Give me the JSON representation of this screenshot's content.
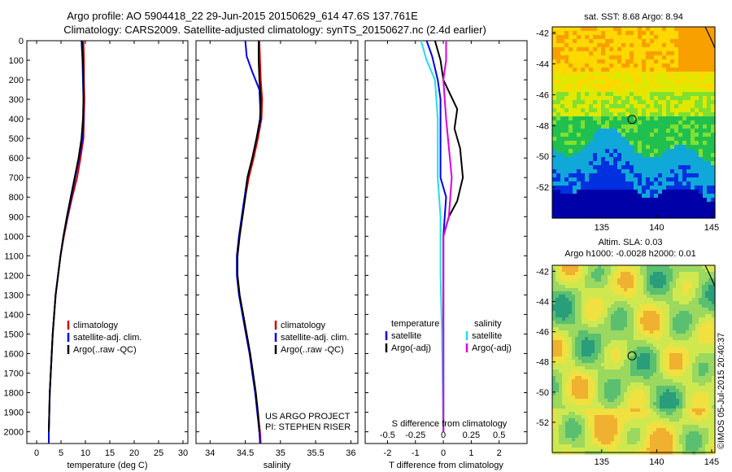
{
  "header": {
    "line1": "Argo profile: AO 5904418_22 29-Jun-2015 20150629_614 47.6S 137.761E",
    "line2": "Climatology: CARS2009. Satellite-adjusted climatology: synTS_20150627.nc (2.4d earlier)"
  },
  "credit": "©IMOS 05-Jul-2015 20:40:37",
  "colors": {
    "red": "#d00000",
    "blue": "#0000ee",
    "black": "#000000",
    "cyan": "#22dde8",
    "magenta": "#dd00dd"
  },
  "chart_data": [
    {
      "type": "line",
      "name": "temperature-profile",
      "xlabel": "temperature (deg C)",
      "xlim": [
        -2,
        31
      ],
      "ylim": [
        0,
        2060
      ],
      "y_reversed": true,
      "xticks": [
        "0",
        "5",
        "10",
        "15",
        "20",
        "25",
        "30"
      ],
      "xtick_values": [
        0,
        5,
        10,
        15,
        20,
        25,
        30
      ],
      "yticks": [
        "0",
        "100",
        "200",
        "300",
        "400",
        "500",
        "600",
        "700",
        "800",
        "900",
        "1000",
        "1100",
        "1200",
        "1300",
        "1400",
        "1500",
        "1600",
        "1700",
        "1800",
        "1900",
        "2000"
      ],
      "ytick_values": [
        0,
        100,
        200,
        300,
        400,
        500,
        600,
        700,
        800,
        900,
        1000,
        1100,
        1200,
        1300,
        1400,
        1500,
        1600,
        1700,
        1800,
        1900,
        2000
      ],
      "legend": [
        "climatology",
        "satellite-adj. clim.",
        "Argo(..raw -QC)"
      ],
      "series": [
        {
          "name": "climatology",
          "color": "red",
          "points": [
            [
              9.6,
              0
            ],
            [
              9.7,
              100
            ],
            [
              9.7,
              200
            ],
            [
              9.8,
              300
            ],
            [
              9.7,
              400
            ],
            [
              9.6,
              500
            ],
            [
              9.0,
              600
            ],
            [
              8.3,
              700
            ],
            [
              7.3,
              800
            ],
            [
              6.4,
              900
            ],
            [
              5.6,
              1000
            ],
            [
              4.9,
              1100
            ],
            [
              4.4,
              1200
            ],
            [
              3.9,
              1300
            ],
            [
              3.6,
              1400
            ],
            [
              3.3,
              1500
            ],
            [
              3.1,
              1600
            ],
            [
              2.9,
              1700
            ],
            [
              2.7,
              1800
            ],
            [
              2.6,
              1900
            ],
            [
              2.5,
              2000
            ],
            [
              2.5,
              2060
            ]
          ]
        },
        {
          "name": "satellite-adj. clim.",
          "color": "blue",
          "points": [
            [
              9.2,
              0
            ],
            [
              9.4,
              100
            ],
            [
              9.5,
              200
            ],
            [
              9.6,
              300
            ],
            [
              9.6,
              400
            ],
            [
              9.4,
              500
            ],
            [
              8.7,
              600
            ],
            [
              7.9,
              700
            ],
            [
              7.1,
              800
            ],
            [
              6.3,
              900
            ],
            [
              5.5,
              1000
            ],
            [
              4.9,
              1100
            ],
            [
              4.4,
              1200
            ],
            [
              3.9,
              1300
            ],
            [
              3.6,
              1400
            ],
            [
              3.3,
              1500
            ],
            [
              3.1,
              1600
            ],
            [
              2.9,
              1700
            ],
            [
              2.7,
              1800
            ],
            [
              2.6,
              1900
            ],
            [
              2.5,
              2000
            ],
            [
              2.5,
              2060
            ]
          ]
        },
        {
          "name": "Argo(..raw -QC)",
          "color": "black",
          "points": [
            [
              9.3,
              0
            ],
            [
              9.5,
              100
            ],
            [
              9.6,
              200
            ],
            [
              9.6,
              300
            ],
            [
              9.5,
              400
            ],
            [
              9.2,
              500
            ],
            [
              8.6,
              600
            ],
            [
              7.8,
              700
            ],
            [
              7.0,
              800
            ],
            [
              6.2,
              900
            ],
            [
              5.5,
              1000
            ],
            [
              4.9,
              1100
            ],
            [
              4.4,
              1200
            ],
            [
              3.9,
              1300
            ],
            [
              3.6,
              1400
            ],
            [
              3.3,
              1500
            ],
            [
              3.1,
              1600
            ],
            [
              2.9,
              1700
            ],
            [
              2.7,
              1800
            ],
            [
              2.6,
              1900
            ],
            [
              2.5,
              2000
            ]
          ]
        }
      ]
    },
    {
      "type": "line",
      "name": "salinity-profile",
      "xlabel": "salinity",
      "xlim": [
        33.8,
        36.1
      ],
      "ylim": [
        0,
        2060
      ],
      "y_reversed": true,
      "xticks": [
        "34",
        "34.5",
        "35",
        "35.5",
        "36"
      ],
      "xtick_values": [
        34,
        34.5,
        35,
        35.5,
        36
      ],
      "legend": [
        "climatology",
        "satellite-adj. clim.",
        "Argo(..raw -QC)"
      ],
      "annotation": [
        "US ARGO PROJECT",
        "PI: STEPHEN RISER"
      ],
      "series": [
        {
          "name": "climatology",
          "color": "red",
          "points": [
            [
              34.7,
              0
            ],
            [
              34.71,
              100
            ],
            [
              34.72,
              200
            ],
            [
              34.74,
              300
            ],
            [
              34.73,
              400
            ],
            [
              34.68,
              500
            ],
            [
              34.62,
              600
            ],
            [
              34.55,
              700
            ],
            [
              34.5,
              800
            ],
            [
              34.46,
              900
            ],
            [
              34.42,
              1000
            ],
            [
              34.39,
              1100
            ],
            [
              34.39,
              1200
            ],
            [
              34.42,
              1300
            ],
            [
              34.47,
              1400
            ],
            [
              34.52,
              1500
            ],
            [
              34.57,
              1600
            ],
            [
              34.61,
              1700
            ],
            [
              34.65,
              1800
            ],
            [
              34.68,
              1900
            ],
            [
              34.71,
              2000
            ],
            [
              34.72,
              2060
            ]
          ]
        },
        {
          "name": "satellite-adj. clim.",
          "color": "blue",
          "points": [
            [
              34.5,
              0
            ],
            [
              34.52,
              80
            ],
            [
              34.6,
              160
            ],
            [
              34.7,
              250
            ],
            [
              34.72,
              400
            ],
            [
              34.66,
              500
            ],
            [
              34.6,
              600
            ],
            [
              34.53,
              700
            ],
            [
              34.49,
              800
            ],
            [
              34.45,
              900
            ],
            [
              34.41,
              1000
            ],
            [
              34.38,
              1100
            ],
            [
              34.38,
              1200
            ],
            [
              34.41,
              1300
            ],
            [
              34.46,
              1400
            ],
            [
              34.51,
              1500
            ],
            [
              34.56,
              1600
            ],
            [
              34.6,
              1700
            ],
            [
              34.64,
              1800
            ],
            [
              34.67,
              1900
            ],
            [
              34.7,
              2000
            ],
            [
              34.71,
              2060
            ]
          ]
        },
        {
          "name": "Argo(..raw -QC)",
          "color": "black",
          "points": [
            [
              34.69,
              0
            ],
            [
              34.69,
              100
            ],
            [
              34.7,
              200
            ],
            [
              34.72,
              300
            ],
            [
              34.71,
              400
            ],
            [
              34.66,
              500
            ],
            [
              34.6,
              600
            ],
            [
              34.53,
              700
            ],
            [
              34.5,
              800
            ],
            [
              34.46,
              900
            ],
            [
              34.42,
              1000
            ],
            [
              34.39,
              1100
            ],
            [
              34.39,
              1200
            ],
            [
              34.42,
              1300
            ],
            [
              34.47,
              1400
            ],
            [
              34.52,
              1500
            ],
            [
              34.57,
              1600
            ],
            [
              34.61,
              1700
            ],
            [
              34.65,
              1800
            ],
            [
              34.68,
              1900
            ],
            [
              34.7,
              2000
            ]
          ]
        }
      ]
    },
    {
      "type": "line",
      "name": "difference-profile",
      "xlabel": "T difference from climatology",
      "xlabel_top": "S difference from climatology",
      "xlim": [
        -2.8,
        3.0
      ],
      "ylim": [
        0,
        2060
      ],
      "y_reversed": true,
      "xticks": [
        "-2",
        "-1",
        "0",
        "1",
        "2"
      ],
      "xtick_values": [
        -2,
        -1,
        0,
        1,
        2
      ],
      "sticks": [
        "-0.5",
        "-0.25",
        "0",
        "0.25",
        "0.5"
      ],
      "stick_values": [
        -2,
        -1,
        0,
        1,
        2
      ],
      "legend_left_title": "temperature",
      "legend_left": [
        "satellite",
        "Argo(-adj)"
      ],
      "legend_right_title": "salinity",
      "legend_right": [
        "satellite",
        "Argo(-adj)"
      ],
      "series": [
        {
          "name": "temperature satellite",
          "color": "blue",
          "points": [
            [
              -0.6,
              0
            ],
            [
              -0.4,
              80
            ],
            [
              -0.2,
              200
            ],
            [
              -0.1,
              300
            ],
            [
              -0.1,
              500
            ],
            [
              -0.1,
              700
            ],
            [
              0.1,
              800
            ],
            [
              0.0,
              1000
            ],
            [
              0.0,
              1500
            ],
            [
              0.0,
              2000
            ]
          ]
        },
        {
          "name": "temperature Argo(-adj)",
          "color": "black",
          "points": [
            [
              -0.3,
              0
            ],
            [
              -0.1,
              100
            ],
            [
              0.0,
              200
            ],
            [
              0.5,
              350
            ],
            [
              0.4,
              450
            ],
            [
              0.6,
              550
            ],
            [
              0.7,
              700
            ],
            [
              0.5,
              820
            ],
            [
              0.2,
              900
            ],
            [
              0.0,
              1000
            ],
            [
              0.0,
              1500
            ],
            [
              0.0,
              2000
            ]
          ]
        },
        {
          "name": "salinity satellite",
          "color": "cyan",
          "points": [
            [
              -0.8,
              0
            ],
            [
              -0.6,
              100
            ],
            [
              -0.3,
              200
            ],
            [
              -0.2,
              400
            ],
            [
              -0.2,
              700
            ],
            [
              -0.1,
              900
            ],
            [
              -0.1,
              1200
            ],
            [
              -0.05,
              1500
            ],
            [
              0.0,
              2000
            ]
          ]
        },
        {
          "name": "salinity Argo(-adj)",
          "color": "magenta",
          "points": [
            [
              0.1,
              0
            ],
            [
              0.1,
              100
            ],
            [
              0.0,
              200
            ],
            [
              0.1,
              400
            ],
            [
              0.3,
              700
            ],
            [
              0.2,
              900
            ],
            [
              0.0,
              1000
            ],
            [
              0.0,
              1500
            ],
            [
              0.0,
              2000
            ]
          ]
        }
      ]
    },
    {
      "type": "heatmap",
      "name": "sst-map",
      "title": "sat. SST: 8.68 Argo: 8.94",
      "xlim": [
        130.5,
        145.3
      ],
      "ylim": [
        -54,
        -41.6
      ],
      "xticks": [
        "135",
        "140",
        "145"
      ],
      "xtick_values": [
        135,
        140,
        145
      ],
      "yticks": [
        "-42",
        "-44",
        "-46",
        "-48",
        "-50",
        "-52"
      ],
      "ytick_values": [
        -42,
        -44,
        -46,
        -48,
        -50,
        -52
      ],
      "marker": [
        137.76,
        -47.6
      ],
      "palette": [
        "#f8a000",
        "#ffd800",
        "#e0e800",
        "#80e030",
        "#20c050",
        "#10a8d8",
        "#0030e0",
        "#0000a8"
      ]
    },
    {
      "type": "heatmap",
      "name": "sla-map",
      "title": "Altim. SLA: 0.03",
      "subtitle": "Argo h1000: -0.0028 h2000: 0.01",
      "xlim": [
        130.5,
        145.3
      ],
      "ylim": [
        -54,
        -41.6
      ],
      "xticks": [
        "135",
        "140",
        "145"
      ],
      "xtick_values": [
        135,
        140,
        145
      ],
      "yticks": [
        "-42",
        "-44",
        "-46",
        "-48",
        "-50",
        "-52"
      ],
      "ytick_values": [
        -42,
        -44,
        -46,
        -48,
        -50,
        -52
      ],
      "marker": [
        137.76,
        -47.6
      ],
      "palette": [
        "#2a9d7a",
        "#5ac070",
        "#9ad860",
        "#d0e850",
        "#f0e040",
        "#f0b030"
      ]
    }
  ]
}
